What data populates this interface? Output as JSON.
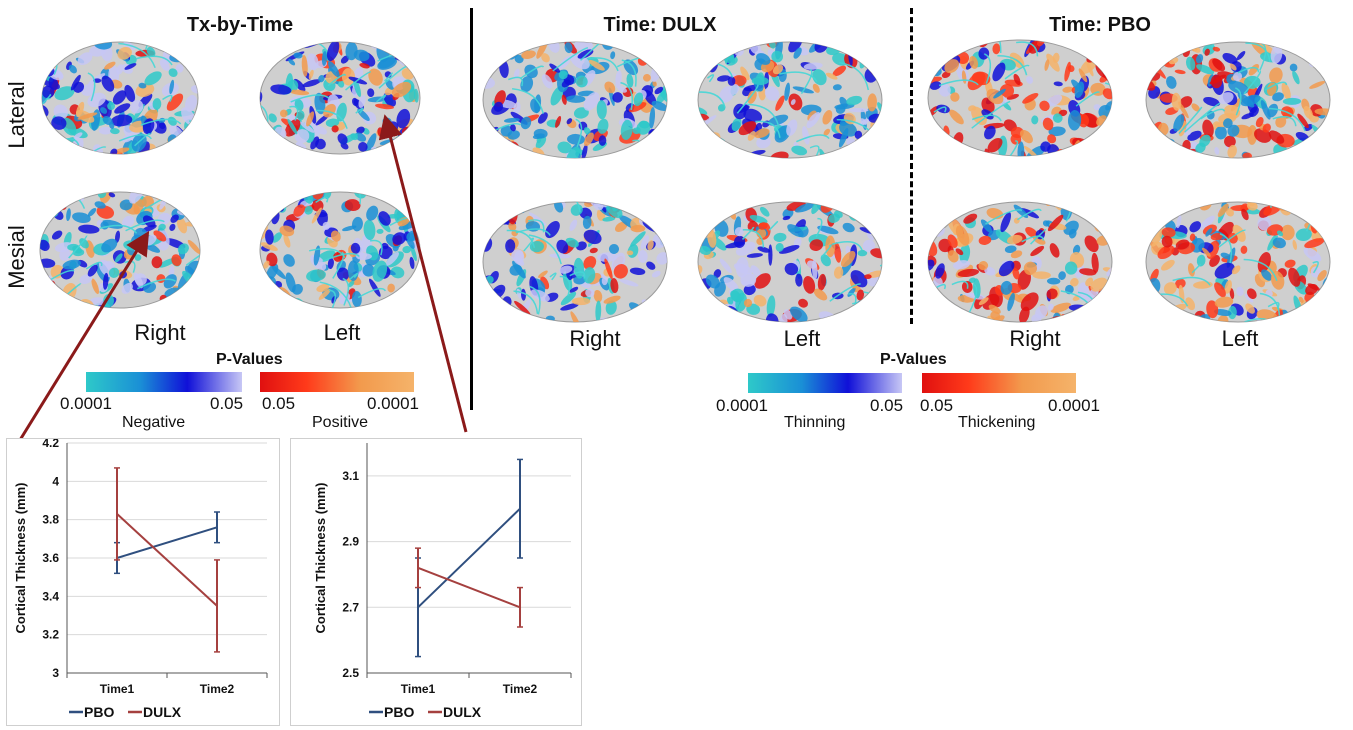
{
  "panels": {
    "tx_by_time": "Tx-by-Time",
    "time_dulx": "Time: DULX",
    "time_pbo": "Time: PBO"
  },
  "row_labels": {
    "lateral": "Lateral",
    "mesial": "Mesial"
  },
  "hemispheres": {
    "right": "Right",
    "left": "Left"
  },
  "legend_left": {
    "title": "P-Values",
    "neg_min": "0.0001",
    "neg_max": "0.05",
    "pos_min": "0.05",
    "pos_max": "0.0001",
    "neg_label": "Negative",
    "pos_label": "Positive"
  },
  "legend_right": {
    "title": "P-Values",
    "neg_min": "0.0001",
    "neg_max": "0.05",
    "pos_min": "0.05",
    "pos_max": "0.0001",
    "neg_label": "Thinning",
    "pos_label": "Thickening"
  },
  "colors": {
    "pbo": "#2f4f7f",
    "dulx": "#a5403f",
    "neg_scale": [
      "#2ec9c9",
      "#1a8fd6",
      "#1010d8",
      "#c7c7f5"
    ],
    "pos_scale": [
      "#e01010",
      "#ff3a1a",
      "#f29a4d",
      "#f5b36a"
    ]
  },
  "chart_data": [
    {
      "type": "line",
      "categories": [
        "Time1",
        "Time2"
      ],
      "ylabel": "Cortical Thickness (mm)",
      "ylim": [
        3,
        4.2
      ],
      "yticks": [
        "3",
        "3.2",
        "3.4",
        "3.6",
        "3.8",
        "4",
        "4.2"
      ],
      "series": [
        {
          "name": "PBO",
          "values": [
            3.6,
            3.76
          ],
          "err": [
            0.08,
            0.08
          ]
        },
        {
          "name": "DULX",
          "values": [
            3.83,
            3.35
          ],
          "err": [
            0.24,
            0.24
          ]
        }
      ],
      "legend": [
        "PBO",
        "DULX"
      ],
      "grid": true
    },
    {
      "type": "line",
      "categories": [
        "Time1",
        "Time2"
      ],
      "ylabel": "Cortical Thickness (mm)",
      "ylim": [
        2.5,
        3.2
      ],
      "yticks": [
        "2.5",
        "2.7",
        "2.9",
        "3.1"
      ],
      "series": [
        {
          "name": "PBO",
          "values": [
            2.7,
            3.0
          ],
          "err": [
            0.15,
            0.15
          ]
        },
        {
          "name": "DULX",
          "values": [
            2.82,
            2.7
          ],
          "err": [
            0.06,
            0.06
          ]
        }
      ],
      "legend": [
        "PBO",
        "DULX"
      ],
      "grid": true
    }
  ]
}
